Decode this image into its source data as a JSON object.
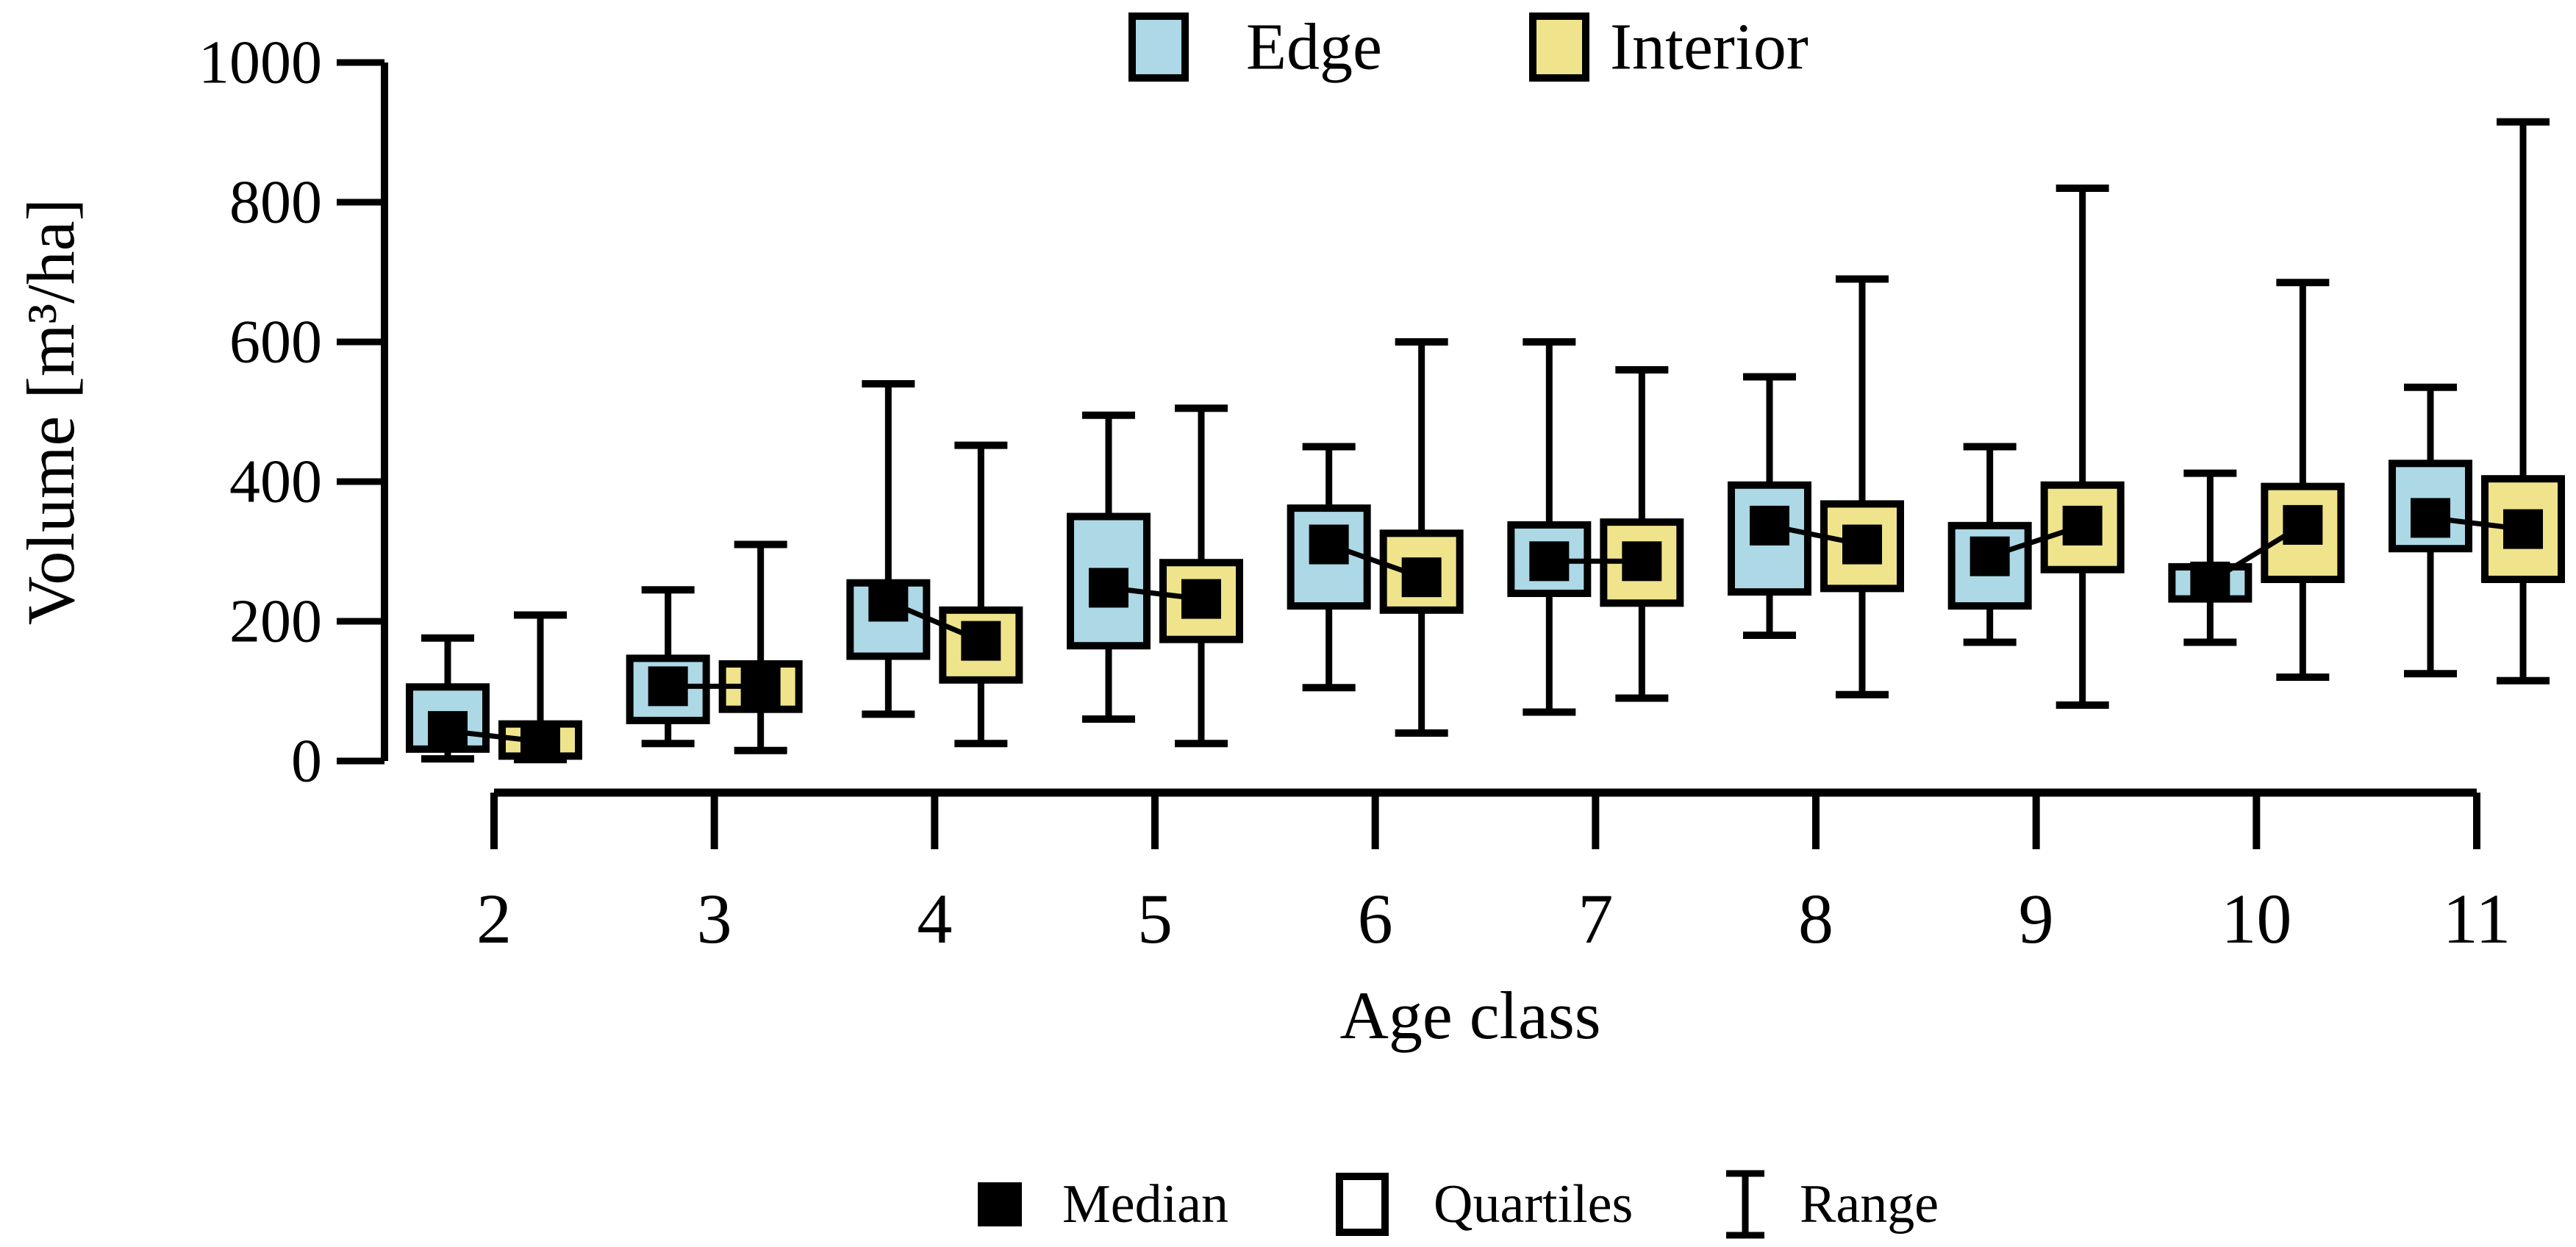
{
  "figure": {
    "background": "#ffffff",
    "stroke_color": "#000000"
  },
  "chart_data": {
    "type": "grouped_boxplot",
    "title": "",
    "xlabel": "Age class",
    "ylabel": "Volume [m³/ha]",
    "ylim": [
      0,
      1000
    ],
    "yticks": [
      0,
      200,
      400,
      600,
      800,
      1000
    ],
    "categories": [
      "2",
      "3",
      "4",
      "5",
      "6",
      "7",
      "8",
      "9",
      "10",
      "11"
    ],
    "legend_position": "top-center",
    "grid": false,
    "connect_medians": true,
    "series": [
      {
        "name": "Edge",
        "color": "#ADD8E6",
        "boxes": [
          {
            "min": 3,
            "q1": 17,
            "med": 43,
            "q3": 106,
            "max": 176
          },
          {
            "min": 25,
            "q1": 58,
            "med": 107,
            "q3": 147,
            "max": 245
          },
          {
            "min": 67,
            "q1": 150,
            "med": 228,
            "q3": 255,
            "max": 540
          },
          {
            "min": 60,
            "q1": 165,
            "med": 248,
            "q3": 350,
            "max": 495
          },
          {
            "min": 105,
            "q1": 222,
            "med": 310,
            "q3": 362,
            "max": 450
          },
          {
            "min": 70,
            "q1": 240,
            "med": 286,
            "q3": 338,
            "max": 600
          },
          {
            "min": 180,
            "q1": 242,
            "med": 337,
            "q3": 395,
            "max": 550
          },
          {
            "min": 170,
            "q1": 222,
            "med": 293,
            "q3": 337,
            "max": 450
          },
          {
            "min": 170,
            "q1": 232,
            "med": 257,
            "q3": 278,
            "max": 412
          },
          {
            "min": 125,
            "q1": 304,
            "med": 348,
            "q3": 426,
            "max": 535
          }
        ]
      },
      {
        "name": "Interior",
        "color": "#EFE48C",
        "boxes": [
          {
            "min": 2,
            "q1": 7,
            "med": 28,
            "q3": 53,
            "max": 209
          },
          {
            "min": 15,
            "q1": 74,
            "med": 107,
            "q3": 139,
            "max": 310
          },
          {
            "min": 25,
            "q1": 116,
            "med": 172,
            "q3": 216,
            "max": 452
          },
          {
            "min": 25,
            "q1": 174,
            "med": 232,
            "q3": 284,
            "max": 505
          },
          {
            "min": 40,
            "q1": 216,
            "med": 263,
            "q3": 326,
            "max": 600
          },
          {
            "min": 90,
            "q1": 226,
            "med": 286,
            "q3": 342,
            "max": 560
          },
          {
            "min": 95,
            "q1": 247,
            "med": 310,
            "q3": 368,
            "max": 690
          },
          {
            "min": 80,
            "q1": 274,
            "med": 337,
            "q3": 395,
            "max": 820
          },
          {
            "min": 120,
            "q1": 260,
            "med": 338,
            "q3": 393,
            "max": 685
          },
          {
            "min": 115,
            "q1": 260,
            "med": 332,
            "q3": 404,
            "max": 915
          }
        ]
      }
    ],
    "bottom_legend": [
      {
        "symbol": "filled-square",
        "label": "Median"
      },
      {
        "symbol": "open-square",
        "label": "Quartiles"
      },
      {
        "symbol": "range-bar",
        "label": "Range"
      }
    ]
  }
}
